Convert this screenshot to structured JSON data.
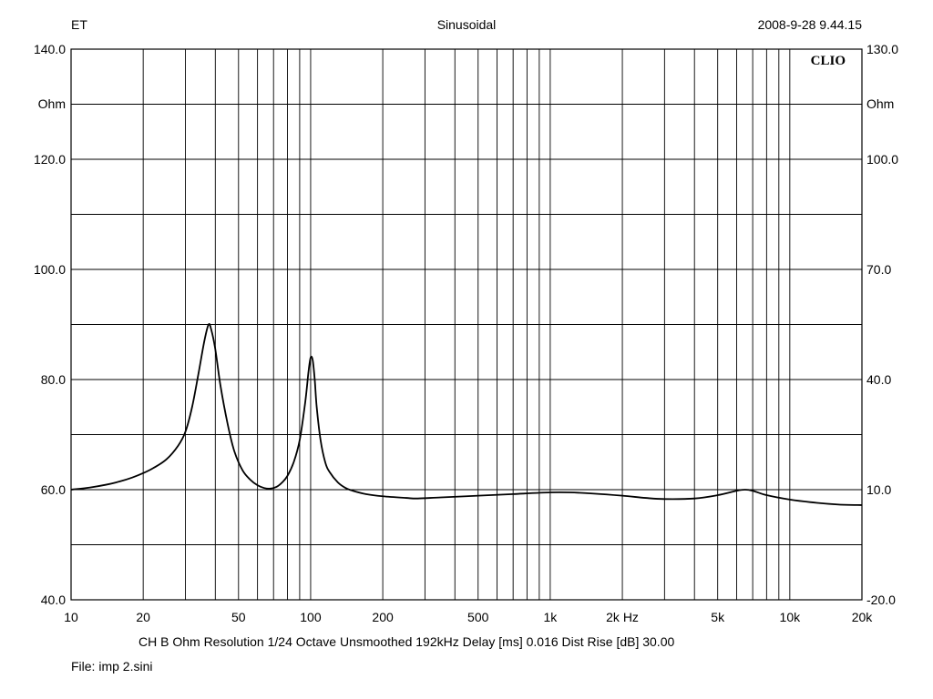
{
  "header": {
    "left": "ET",
    "center": "Sinusoidal",
    "right": "2008-9-28 9.44.15"
  },
  "watermark": "CLIO",
  "footer": {
    "info": "CH B   Ohm   Resolution 1/24 Octave   Unsmoothed   192kHz   Delay [ms] 0.016    Dist Rise [dB] 30.00",
    "file": "File: imp 2.sini"
  },
  "chart_data": {
    "type": "line",
    "x_scale": "log",
    "xlim": [
      10,
      20000
    ],
    "ylim_left": [
      40,
      140
    ],
    "ylim_right": [
      -20,
      130
    ],
    "grid": true,
    "legend": "none",
    "ylabel_left": "Ohm",
    "ylabel_right": "Ohm",
    "x_ticks": [
      {
        "v": 10,
        "label": "10"
      },
      {
        "v": 20,
        "label": "20"
      },
      {
        "v": 50,
        "label": "50"
      },
      {
        "v": 100,
        "label": "100"
      },
      {
        "v": 200,
        "label": "200"
      },
      {
        "v": 500,
        "label": "500"
      },
      {
        "v": 1000,
        "label": "1k"
      },
      {
        "v": 2000,
        "label": "2k Hz"
      },
      {
        "v": 5000,
        "label": "5k"
      },
      {
        "v": 10000,
        "label": "10k"
      },
      {
        "v": 20000,
        "label": "20k"
      }
    ],
    "y_ticks_left": [
      {
        "v": 140,
        "label": "140.0"
      },
      {
        "v": 120,
        "label": "120.0"
      },
      {
        "v": 100,
        "label": "100.0"
      },
      {
        "v": 80,
        "label": "80.0"
      },
      {
        "v": 60,
        "label": "60.0"
      },
      {
        "v": 40,
        "label": "40.0"
      }
    ],
    "y_ticks_right": [
      {
        "v": 130,
        "label": "130.0"
      },
      {
        "v": 100,
        "label": "100.0"
      },
      {
        "v": 70,
        "label": "70.0"
      },
      {
        "v": 40,
        "label": "40.0"
      },
      {
        "v": 10,
        "label": "10.0"
      },
      {
        "v": -20,
        "label": "-20.0"
      }
    ],
    "series": [
      {
        "color": "#000000",
        "x": [
          10,
          12,
          14,
          16,
          18,
          20,
          22,
          25,
          28,
          30,
          32,
          34,
          36,
          37.5,
          38.5,
          40,
          42,
          45,
          48,
          52,
          56,
          60,
          64,
          68,
          72,
          76,
          80,
          85,
          90,
          95,
          98,
          100,
          102,
          104,
          106,
          110,
          115,
          120,
          130,
          140,
          150,
          170,
          200,
          250,
          280,
          350,
          500,
          700,
          1000,
          1200,
          1500,
          2000,
          2500,
          3000,
          4000,
          5000,
          6000,
          6500,
          7000,
          8000,
          10000,
          13000,
          16000,
          20000
        ],
        "y": [
          60.0,
          60.4,
          60.9,
          61.5,
          62.2,
          63.0,
          63.9,
          65.5,
          68.0,
          70.5,
          75.0,
          81.0,
          87.0,
          90.0,
          89.0,
          85.5,
          79.0,
          72.0,
          67.0,
          63.5,
          61.8,
          60.8,
          60.3,
          60.2,
          60.5,
          61.3,
          62.5,
          65.0,
          69.0,
          76.0,
          81.5,
          84.0,
          83.5,
          80.0,
          75.0,
          69.0,
          65.0,
          63.2,
          61.3,
          60.3,
          59.8,
          59.2,
          58.8,
          58.5,
          58.4,
          58.6,
          58.9,
          59.2,
          59.5,
          59.5,
          59.3,
          58.9,
          58.5,
          58.3,
          58.4,
          59.0,
          59.8,
          60.0,
          59.8,
          59.0,
          58.2,
          57.6,
          57.3,
          57.2
        ]
      }
    ]
  }
}
